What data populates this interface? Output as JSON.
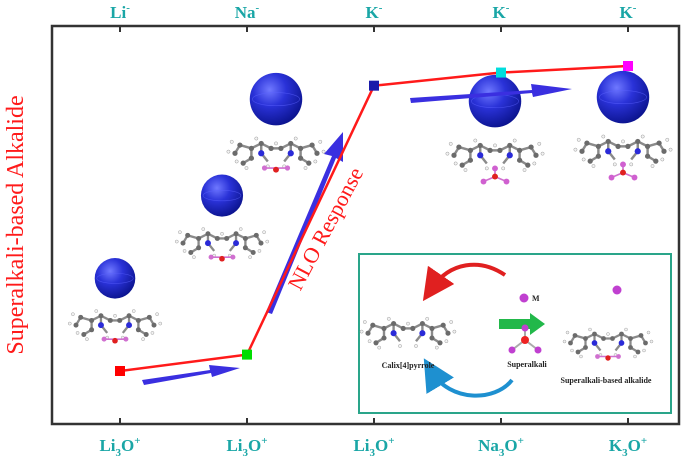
{
  "chart_data": {
    "type": "line",
    "ylabel": "Superalkali-based Alkalide",
    "top_labels": [
      {
        "base": "Li",
        "sup": "-"
      },
      {
        "base": "Na",
        "sup": "-"
      },
      {
        "base": "K",
        "sup": "-"
      },
      {
        "base": "K",
        "sup": "-"
      },
      {
        "base": "K",
        "sup": "-"
      }
    ],
    "bottom_labels": [
      {
        "base": "Li",
        "sub": "3",
        "rest": "O",
        "sup": "+"
      },
      {
        "base": "Li",
        "sub": "3",
        "rest": "O",
        "sup": "+"
      },
      {
        "base": "Li",
        "sub": "3",
        "rest": "O",
        "sup": "+"
      },
      {
        "base": "Na",
        "sub": "3",
        "rest": "O",
        "sup": "+"
      },
      {
        "base": "K",
        "sub": "3",
        "rest": "O",
        "sup": "+"
      }
    ],
    "points": [
      {
        "x": 1,
        "y": 0.05,
        "color": "#ff0000"
      },
      {
        "x": 2,
        "y": 0.1,
        "color": "#00dd00"
      },
      {
        "x": 3,
        "y": 0.92,
        "color": "#1a1aaa"
      },
      {
        "x": 4,
        "y": 0.96,
        "color": "#00dddd"
      },
      {
        "x": 5,
        "y": 0.98,
        "color": "#ff00ff"
      }
    ],
    "line_color": "#ff1a1a",
    "annotation": "NLO Response"
  },
  "inset": {
    "m_label": "M",
    "calix_label": "Calix[4]pyrrole",
    "superalkali_label": "Superalkali",
    "result_label": "Superalkali-based alkalide"
  },
  "colors": {
    "frame": "#333333",
    "label_teal": "#1aa6a6",
    "arrow_blue": "#3a2fe0",
    "inset_border": "#2aa58a",
    "sphere": "#1c23c8"
  }
}
